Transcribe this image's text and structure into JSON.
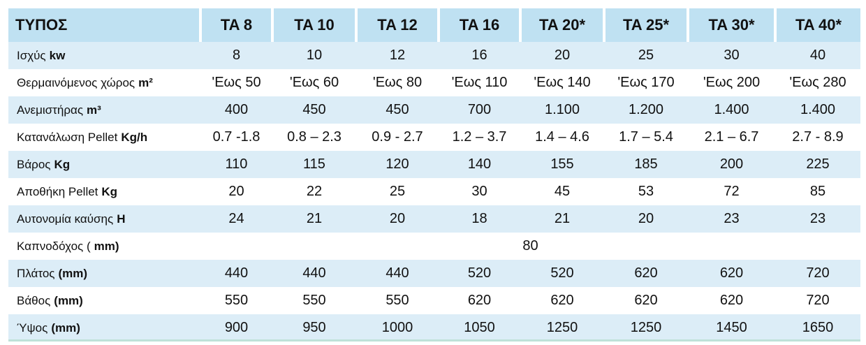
{
  "table": {
    "header": {
      "label": "ΤΥΠΟΣ",
      "columns": [
        "TA 8",
        "TA 10",
        "TA 12",
        "TA 16",
        "TA 20*",
        "TA 25*",
        "TA 30*",
        "TA 40*"
      ]
    },
    "rows": [
      {
        "label": "Ισχύς",
        "unit": "kw",
        "values": [
          8,
          10,
          12,
          16,
          20,
          25,
          30,
          40
        ]
      },
      {
        "label": "Θερμαινόμενος χώρος",
        "unit": "m²",
        "values": [
          "'Εως 50",
          "'Εως 60",
          "'Εως 80",
          "'Εως 110",
          "'Εως 140",
          "'Εως 170",
          "'Εως 200",
          "'Εως 280"
        ]
      },
      {
        "label": "Ανεμιστήρας",
        "unit": "m³",
        "values": [
          400,
          450,
          450,
          700,
          "1.100",
          "1.200",
          "1.400",
          "1.400"
        ]
      },
      {
        "label": "Κατανάλωση  Pellet",
        "unit": "Kg/h",
        "values": [
          "0.7 -1.8",
          "0.8 – 2.3",
          "0.9 - 2.7",
          "1.2 – 3.7",
          "1.4 – 4.6",
          "1.7 – 5.4",
          "2.1 – 6.7",
          "2.7 - 8.9"
        ]
      },
      {
        "label": "Βάρος",
        "unit": "Kg",
        "values": [
          110,
          115,
          120,
          140,
          155,
          185,
          200,
          225
        ]
      },
      {
        "label": "Αποθήκη Pellet",
        "unit": "Kg",
        "values": [
          20,
          22,
          25,
          30,
          45,
          53,
          72,
          85
        ]
      },
      {
        "label": "Αυτονομία καύσης",
        "unit": "H",
        "values": [
          24,
          21,
          20,
          18,
          21,
          20,
          23,
          23
        ]
      },
      {
        "label": "Καπνοδόχος (",
        "unit": "mm)",
        "values": [
          80
        ]
      },
      {
        "label": "Πλάτος",
        "unit": "(mm)",
        "values": [
          440,
          440,
          440,
          520,
          520,
          620,
          620,
          720
        ]
      },
      {
        "label": "Βάθος",
        "unit": "(mm)",
        "values": [
          550,
          550,
          550,
          620,
          620,
          620,
          620,
          720
        ]
      },
      {
        "label": "Ύψος",
        "unit": "(mm)",
        "values": [
          900,
          950,
          1000,
          1050,
          1250,
          1250,
          1450,
          1650
        ]
      }
    ]
  }
}
